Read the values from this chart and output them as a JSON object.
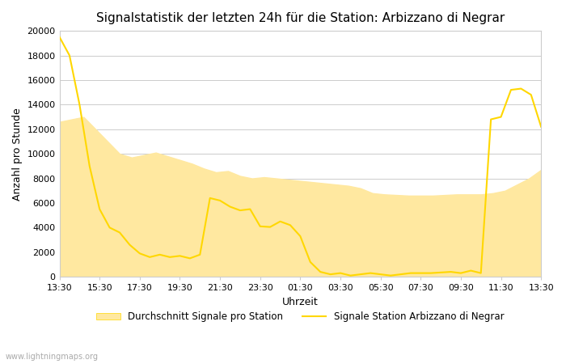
{
  "title": "Signalstatistik der letzten 24h für die Station: Arbizzano di Negrar",
  "xlabel": "Uhrzeit",
  "ylabel": "Anzahl pro Stunde",
  "ylim": [
    0,
    20000
  ],
  "yticks": [
    0,
    2000,
    4000,
    6000,
    8000,
    10000,
    12000,
    14000,
    16000,
    18000,
    20000
  ],
  "xtick_labels": [
    "13:30",
    "15:30",
    "17:30",
    "19:30",
    "21:30",
    "23:30",
    "01:30",
    "03:30",
    "05:30",
    "07:30",
    "09:30",
    "11:30",
    "13:30"
  ],
  "fill_color": "#FFE8A0",
  "line_color": "#FFD700",
  "background_color": "#ffffff",
  "watermark": "www.lightningmaps.org",
  "legend_fill_label": "Durchschnitt Signale pro Station",
  "legend_line_label": "Signale Station Arbizzano di Negrar",
  "avg_values": [
    12600,
    12800,
    13000,
    12000,
    11000,
    10000,
    9700,
    9900,
    10100,
    9800,
    9500,
    9200,
    8800,
    8500,
    8600,
    8200,
    8000,
    8100,
    8000,
    7900,
    7800,
    7700,
    7600,
    7500,
    7400,
    7200,
    6800,
    6700,
    6650,
    6600,
    6600,
    6600,
    6650,
    6700,
    6700,
    6700,
    6800,
    7000,
    7500,
    8000,
    8700
  ],
  "station_values": [
    19500,
    18000,
    14000,
    9000,
    5500,
    4000,
    3600,
    2600,
    1900,
    1600,
    1800,
    1600,
    1700,
    1500,
    1800,
    6400,
    6200,
    5700,
    5400,
    5500,
    4100,
    4050,
    4500,
    4200,
    3300,
    1200,
    400,
    200,
    300,
    100,
    200,
    300,
    200,
    100,
    200,
    300,
    300,
    300,
    350,
    400,
    300,
    500,
    300,
    12800,
    13000,
    15200,
    15300,
    14800,
    12200
  ]
}
